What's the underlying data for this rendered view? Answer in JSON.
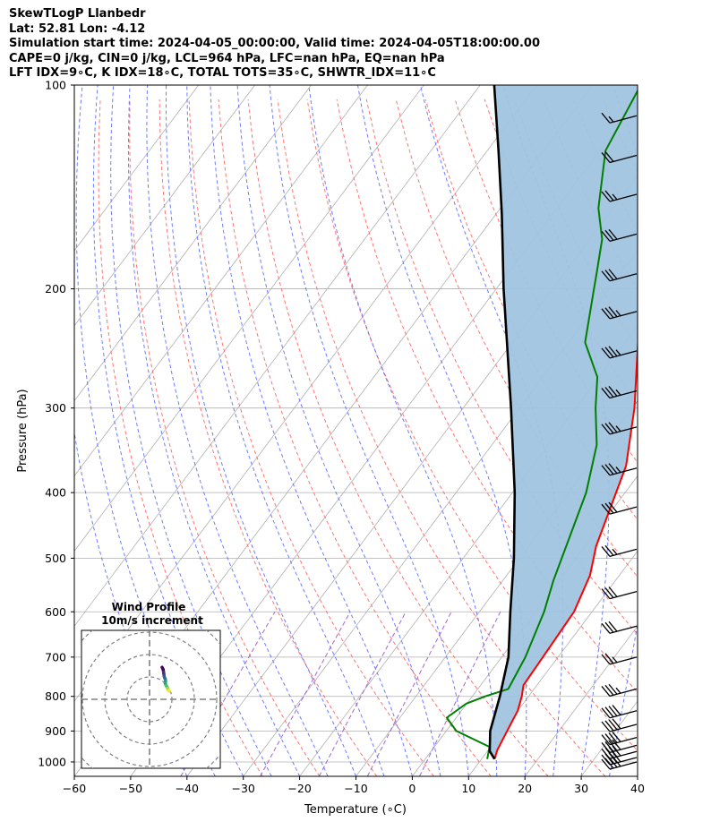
{
  "header": {
    "line1": "SkewTLogP Llanbedr",
    "line2": "Lat: 52.81   Lon: -4.12",
    "line3": "Simulation start time: 2024-04-05_00:00:00, Valid time: 2024-04-05T18:00:00.00",
    "line4": "CAPE=0 j/kg, CIN=0 j/kg, LCL=964 hPa, LFC=nan hPa, EQ=nan hPa",
    "line5": "LFT IDX=9∘C, K IDX=18∘C, TOTAL TOTS=35∘C, SHWTR_IDX=11∘C"
  },
  "colors": {
    "temperature": "#ff0000",
    "dewpoint": "#008000",
    "parcel": "#000000",
    "shading": "#a0c4e0",
    "isotherms": "#b0b0b0",
    "dry_adiabats": "#ff6666",
    "moist_adiabats": "#5566ff",
    "mixing_ratio": "#9955cc"
  },
  "chart_data": [
    {
      "type": "line",
      "subtype": "skew-T log-P diagram",
      "xlabel": "Temperature (∘C)",
      "ylabel": "Pressure (hPa)",
      "x_ticks": [
        "−60",
        "−50",
        "−40",
        "−30",
        "−20",
        "−10",
        "0",
        "10",
        "20",
        "30",
        "40"
      ],
      "y_ticks": [
        "100",
        "200",
        "300",
        "400",
        "500",
        "600",
        "700",
        "800",
        "900",
        "1000"
      ],
      "xlim": [
        -60,
        40
      ],
      "ylim": [
        1050,
        100
      ],
      "y_scale": "log",
      "grid": true,
      "series": [
        {
          "name": "Temperature",
          "color": "#ff0000",
          "points": [
            [
              12.3,
              990
            ],
            [
              11.6,
              960
            ],
            [
              10.8,
              900
            ],
            [
              10.0,
              840
            ],
            [
              8.8,
              800
            ],
            [
              7.6,
              770
            ],
            [
              7.3,
              700
            ],
            [
              6.8,
              600
            ],
            [
              4.8,
              530
            ],
            [
              2.0,
              480
            ],
            [
              -3.4,
              365
            ],
            [
              -9.6,
              300
            ],
            [
              -17.7,
              240
            ],
            [
              -24.6,
              200
            ],
            [
              -21.2,
              187
            ],
            [
              -17.8,
              170
            ],
            [
              -17.3,
              153
            ],
            [
              -22.5,
              133
            ],
            [
              -25.8,
              117
            ],
            [
              -29.1,
              100
            ]
          ]
        },
        {
          "name": "Dewpoint",
          "color": "#008000",
          "points": [
            [
              11.0,
              990
            ],
            [
              9.8,
              950
            ],
            [
              1.8,
              900
            ],
            [
              -1.7,
              860
            ],
            [
              -0.1,
              820
            ],
            [
              2.3,
              800
            ],
            [
              5.4,
              780
            ],
            [
              4.2,
              700
            ],
            [
              1.5,
              600
            ],
            [
              -1.0,
              540
            ],
            [
              -6.9,
              400
            ],
            [
              -11.4,
              340
            ],
            [
              -16.5,
              300
            ],
            [
              -20.3,
              270
            ],
            [
              -27.1,
              240
            ],
            [
              -32.2,
              203
            ],
            [
              -34.2,
              190
            ],
            [
              -37.8,
              169
            ],
            [
              -42.6,
              152
            ],
            [
              -49.0,
              125
            ],
            [
              -51.5,
              100
            ]
          ]
        },
        {
          "name": "Parcel profile",
          "color": "#000000",
          "points": [
            [
              12.3,
              990
            ],
            [
              10.4,
              964
            ],
            [
              7.8,
              900
            ],
            [
              4.9,
              800
            ],
            [
              1.2,
              700
            ],
            [
              -4.5,
              600
            ],
            [
              -11.0,
              500
            ],
            [
              -19.6,
              400
            ],
            [
              -31.5,
              300
            ],
            [
              -48.7,
              200
            ],
            [
              -59.0,
              155
            ],
            [
              -68.0,
              125
            ],
            [
              -77.5,
              100
            ]
          ]
        }
      ],
      "wind_barbs": [
        {
          "pressure": 1000,
          "speed_kt": 40
        },
        {
          "pressure": 985,
          "speed_kt": 40
        },
        {
          "pressure": 965,
          "speed_kt": 40
        },
        {
          "pressure": 945,
          "speed_kt": 40
        },
        {
          "pressure": 920,
          "speed_kt": 40
        },
        {
          "pressure": 880,
          "speed_kt": 40
        },
        {
          "pressure": 840,
          "speed_kt": 40
        },
        {
          "pressure": 780,
          "speed_kt": 35
        },
        {
          "pressure": 700,
          "speed_kt": 25
        },
        {
          "pressure": 630,
          "speed_kt": 30
        },
        {
          "pressure": 560,
          "speed_kt": 30
        },
        {
          "pressure": 485,
          "speed_kt": 25
        },
        {
          "pressure": 420,
          "speed_kt": 30
        },
        {
          "pressure": 368,
          "speed_kt": 35
        },
        {
          "pressure": 320,
          "speed_kt": 35
        },
        {
          "pressure": 283,
          "speed_kt": 35
        },
        {
          "pressure": 247,
          "speed_kt": 35
        },
        {
          "pressure": 216,
          "speed_kt": 35
        },
        {
          "pressure": 190,
          "speed_kt": 30
        },
        {
          "pressure": 166,
          "speed_kt": 30
        },
        {
          "pressure": 145,
          "speed_kt": 25
        },
        {
          "pressure": 127,
          "speed_kt": 20
        },
        {
          "pressure": 111,
          "speed_kt": 15
        }
      ]
    },
    {
      "type": "scatter",
      "subtype": "hodograph",
      "title": "Wind Profile",
      "subtitle": "10m/s increment",
      "ring_increment": 10,
      "points_uv": [
        [
          10.2,
          3.1
        ],
        [
          11.0,
          2.2
        ],
        [
          11.4,
          1.0
        ],
        [
          11.6,
          0.2
        ],
        [
          11.8,
          -0.8
        ],
        [
          12.2,
          -1.5
        ],
        [
          12.9,
          -2.4
        ],
        [
          13.0,
          -3.2
        ],
        [
          12.8,
          -4.1
        ],
        [
          13.4,
          -5.0
        ],
        [
          14.1,
          -5.6
        ],
        [
          14.6,
          -6.2
        ],
        [
          15.0,
          -6.8
        ],
        [
          15.6,
          -7.2
        ],
        [
          16.0,
          -7.6
        ]
      ],
      "colormap": "viridis"
    }
  ]
}
